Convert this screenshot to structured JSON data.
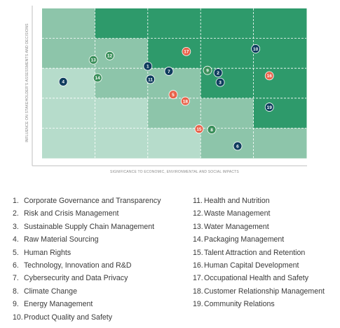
{
  "chart_data": {
    "type": "scatter",
    "xlabel": "SIGNIFICANCE TO ECONOMIC, ENVIRONMENTAL AND SOCIAL IMPACTS",
    "ylabel": "INFLUENCE ON STAKEHOLDER'S ASSESSMENTS AND DECISIONS",
    "grid": "5x5 dashed",
    "cell_colors": [
      [
        "#8dc5aa",
        "#2e9a6b",
        "#2e9a6b",
        "#2e9a6b",
        "#2e9a6b"
      ],
      [
        "#8dc5aa",
        "#8dc5aa",
        "#2e9a6b",
        "#2e9a6b",
        "#2e9a6b"
      ],
      [
        "#b6dccb",
        "#8dc5aa",
        "#8dc5aa",
        "#2e9a6b",
        "#2e9a6b"
      ],
      [
        "#b6dccb",
        "#b6dccb",
        "#8dc5aa",
        "#8dc5aa",
        "#2e9a6b"
      ],
      [
        "#b6dccb",
        "#b6dccb",
        "#b6dccb",
        "#8dc5aa",
        "#8dc5aa"
      ]
    ],
    "points": [
      {
        "label": "1",
        "x": 2.0,
        "y": 3.07,
        "color": "#0f3d5e"
      },
      {
        "label": "2",
        "x": 3.33,
        "y": 2.85,
        "color": "#0f3d5e"
      },
      {
        "label": "3",
        "x": 3.37,
        "y": 2.53,
        "color": "#0f3d5e"
      },
      {
        "label": "4",
        "x": 0.4,
        "y": 2.55,
        "color": "#0f3d5e"
      },
      {
        "label": "5",
        "x": 2.48,
        "y": 2.12,
        "color": "#e8624a"
      },
      {
        "label": "6",
        "x": 3.7,
        "y": 0.4,
        "color": "#0f3d5e"
      },
      {
        "label": "7",
        "x": 2.4,
        "y": 2.9,
        "color": "#0f3d5e"
      },
      {
        "label": "8",
        "x": 3.21,
        "y": 0.95,
        "color": "#3a8f5a"
      },
      {
        "label": "9",
        "x": 3.13,
        "y": 2.93,
        "color": "#3a8f5a"
      },
      {
        "label": "10",
        "x": 4.04,
        "y": 3.65,
        "color": "#0f3d5e"
      },
      {
        "label": "11",
        "x": 2.05,
        "y": 2.63,
        "color": "#0f3d5e"
      },
      {
        "label": "12",
        "x": 1.28,
        "y": 3.42,
        "color": "#3a8f5a"
      },
      {
        "label": "13",
        "x": 0.97,
        "y": 3.28,
        "color": "#3a8f5a"
      },
      {
        "label": "14",
        "x": 1.05,
        "y": 2.68,
        "color": "#3a8f5a"
      },
      {
        "label": "15",
        "x": 2.97,
        "y": 0.97,
        "color": "#e8624a"
      },
      {
        "label": "16",
        "x": 4.3,
        "y": 2.75,
        "color": "#e8624a"
      },
      {
        "label": "17",
        "x": 2.73,
        "y": 3.56,
        "color": "#e8624a"
      },
      {
        "label": "18",
        "x": 2.71,
        "y": 1.9,
        "color": "#e8624a"
      },
      {
        "label": "19",
        "x": 4.3,
        "y": 1.7,
        "color": "#0f3d5e"
      }
    ]
  },
  "legend_left": [
    {
      "num": "1.",
      "text": "Corporate Governance and Transparency"
    },
    {
      "num": "2.",
      "text": "Risk and Crisis Management"
    },
    {
      "num": "3.",
      "text": "Sustainable Supply Chain Management"
    },
    {
      "num": "4.",
      "text": "Raw Material Sourcing"
    },
    {
      "num": "5.",
      "text": "Human Rights"
    },
    {
      "num": "6.",
      "text": "Technology, Innovation and R&D"
    },
    {
      "num": "7.",
      "text": "Cybersecurity and Data Privacy"
    },
    {
      "num": "8.",
      "text": "Climate Change"
    },
    {
      "num": "9.",
      "text": "Energy Management"
    },
    {
      "num": "10.",
      "text": "Product Quality and Safety"
    }
  ],
  "legend_right": [
    {
      "num": "11.",
      "text": "Health and Nutrition"
    },
    {
      "num": "12.",
      "text": "Waste Management"
    },
    {
      "num": "13.",
      "text": "Water Management"
    },
    {
      "num": "14.",
      "text": "Packaging Management"
    },
    {
      "num": "15.",
      "text": "Talent Attraction and Retention"
    },
    {
      "num": "16.",
      "text": "Human Capital Development"
    },
    {
      "num": "17.",
      "text": "Occupational Health and Safety"
    },
    {
      "num": "18.",
      "text": "Customer Relationship Management"
    },
    {
      "num": "19.",
      "text": "Community Relations"
    }
  ]
}
